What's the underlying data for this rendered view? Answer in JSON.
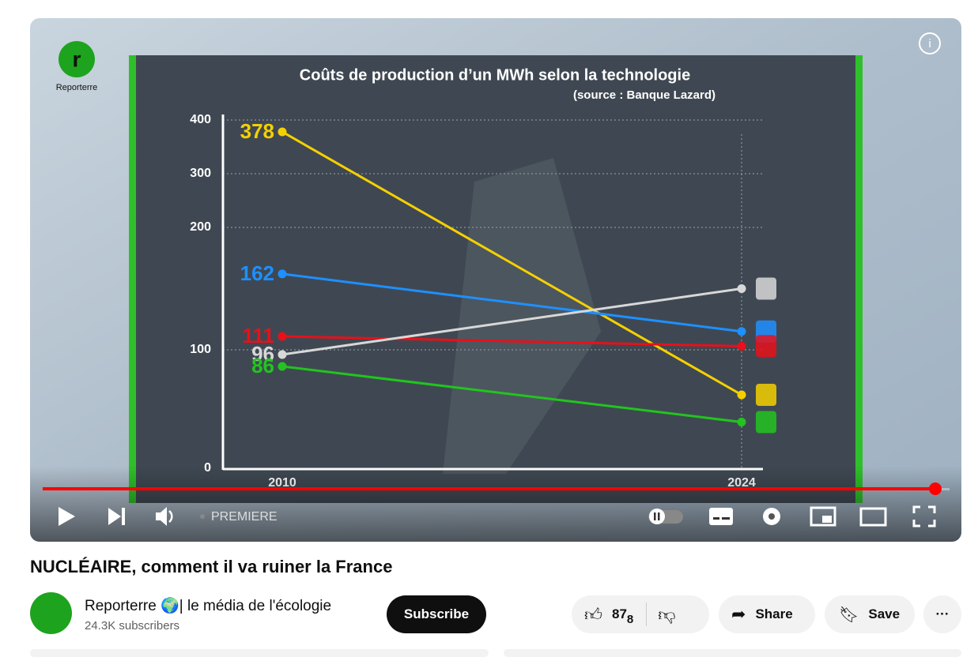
{
  "channel_logo": "Reporterre",
  "chart_data": {
    "type": "line",
    "title": "Coûts de production d’un MWh selon la technologie",
    "subtitle": "(source : Banque Lazard)",
    "categories": [
      "2010",
      "2024"
    ],
    "series": [
      {
        "color": "#f5d000",
        "values": [
          378,
          62
        ]
      },
      {
        "color": "#1e90ff",
        "values": [
          162,
          115
        ]
      },
      {
        "color": "#e8101a",
        "values": [
          111,
          103
        ]
      },
      {
        "color": "#d8d8d8",
        "values": [
          96,
          150
        ]
      },
      {
        "color": "#22c41e",
        "values": [
          86,
          39
        ]
      }
    ],
    "ylim": [
      0,
      400
    ],
    "yticks": [
      0,
      100,
      200,
      300,
      400
    ],
    "grid": true
  },
  "player": {
    "badge": "PREMIERE"
  },
  "video": {
    "title": "NUCLÉAIRE, comment il va ruiner la France",
    "channel": "Reporterre 🌍| le média de l'écologie",
    "subscribers": "24.3K subscribers",
    "subscribe": "Subscribe",
    "likes": "87",
    "likes_sub": "8",
    "share": "Share",
    "save": "Save"
  }
}
